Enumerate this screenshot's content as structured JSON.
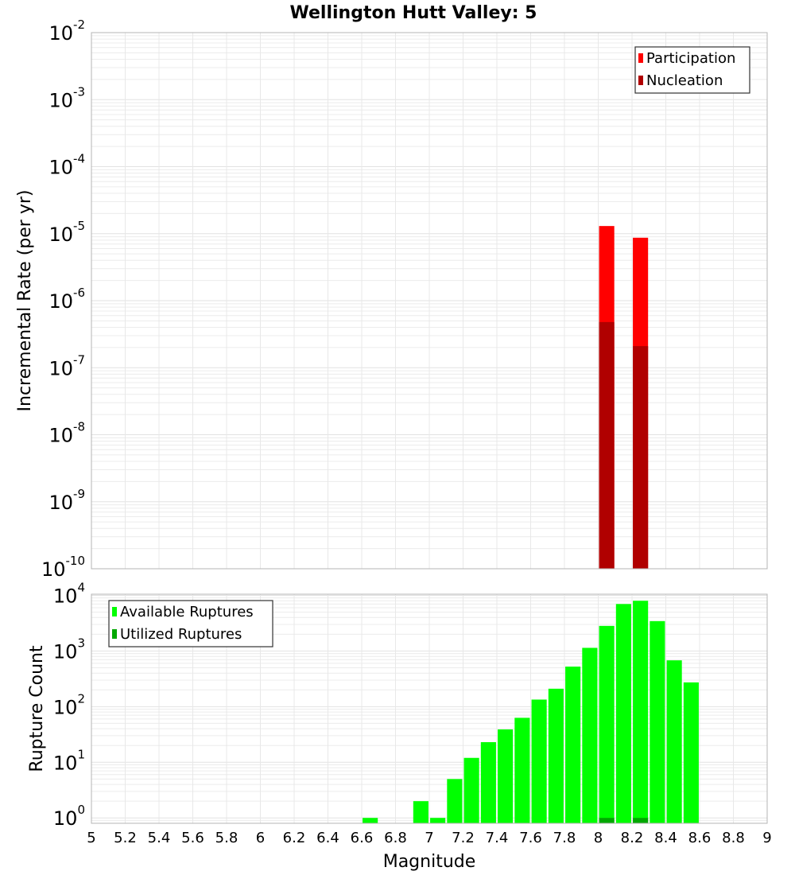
{
  "chart_data": [
    {
      "type": "bar",
      "title": "Wellington Hutt Valley: 5",
      "xlabel": "Magnitude",
      "ylabel": "Incremental Rate (per yr)",
      "yscale": "log",
      "xlim": [
        5,
        9
      ],
      "ylim": [
        1e-10,
        0.01
      ],
      "x_ticks": [
        "5",
        "5.2",
        "5.4",
        "5.6",
        "5.8",
        "6",
        "6.2",
        "6.4",
        "6.6",
        "6.8",
        "7",
        "7.2",
        "7.4",
        "7.6",
        "7.8",
        "8",
        "8.2",
        "8.4",
        "8.6",
        "8.8",
        "9"
      ],
      "y_tick_exponents": [
        "-10",
        "-9",
        "-8",
        "-7",
        "-6",
        "-5",
        "-4",
        "-3",
        "-2"
      ],
      "y_tick_base": "10",
      "legend": {
        "placement": "top-right",
        "entries": [
          "Participation",
          "Nucleation"
        ]
      },
      "grid": true,
      "series": [
        {
          "name": "Participation",
          "color": "#ff0000",
          "x": [
            8.05,
            8.25
          ],
          "values": [
            1.3e-05,
            8.7e-06
          ]
        },
        {
          "name": "Nucleation",
          "color": "#b00000",
          "x": [
            8.05,
            8.25
          ],
          "values": [
            4.8e-07,
            2.1e-07
          ]
        }
      ]
    },
    {
      "type": "bar",
      "xlabel": "Magnitude",
      "ylabel": "Rupture Count",
      "yscale": "log",
      "xlim": [
        5,
        9
      ],
      "ylim": [
        0.8,
        10500
      ],
      "y_tick_exponents": [
        "0",
        "1",
        "2",
        "3",
        "4"
      ],
      "y_tick_base": "10",
      "legend": {
        "placement": "top-left",
        "entries": [
          "Available Ruptures",
          "Utilized Ruptures"
        ]
      },
      "grid": true,
      "series": [
        {
          "name": "Available Ruptures",
          "color": "#00ff00",
          "x": [
            6.65,
            6.95,
            7.05,
            7.15,
            7.25,
            7.35,
            7.45,
            7.55,
            7.65,
            7.75,
            7.85,
            7.95,
            8.05,
            8.15,
            8.25,
            8.35,
            8.45,
            8.55
          ],
          "values": [
            1,
            2,
            1,
            5,
            12,
            23,
            39,
            63,
            134,
            210,
            525,
            1140,
            2830,
            7000,
            8000,
            3450,
            680,
            273
          ]
        },
        {
          "name": "Utilized Ruptures",
          "color": "#00a800",
          "x": [
            8.05,
            8.25
          ],
          "values": [
            1,
            1
          ]
        }
      ]
    }
  ]
}
